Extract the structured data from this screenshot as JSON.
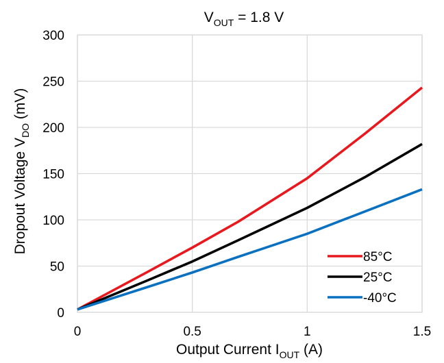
{
  "chart_data": {
    "type": "line",
    "title": {
      "main": "V",
      "sub": "OUT",
      "rest": " = 1.8 V"
    },
    "xlabel": {
      "main": "Output Current I",
      "sub": "OUT",
      "rest": " (A)"
    },
    "ylabel": {
      "main": "Dropout Voltage V",
      "sub": "DO",
      "rest": " (mV)"
    },
    "xlim": [
      0,
      1.5
    ],
    "ylim": [
      0,
      300
    ],
    "xticks": [
      0,
      0.5,
      1,
      1.5
    ],
    "xtick_labels": [
      "0",
      "0.5",
      "1",
      "1.5"
    ],
    "yticks": [
      0,
      50,
      100,
      150,
      200,
      250,
      300
    ],
    "ytick_labels": [
      "0",
      "50",
      "100",
      "150",
      "200",
      "250",
      "300"
    ],
    "grid": true,
    "legend_position": "bottom-right",
    "series": [
      {
        "name": "85°C",
        "color": "#e8191e",
        "x": [
          0,
          0.3,
          0.5,
          0.7,
          1.0,
          1.25,
          1.5
        ],
        "y": [
          3,
          43,
          70,
          98,
          145,
          193,
          243
        ]
      },
      {
        "name": "25°C",
        "color": "#000000",
        "x": [
          0,
          0.3,
          0.5,
          0.7,
          1.0,
          1.25,
          1.5
        ],
        "y": [
          3,
          34,
          55,
          78,
          113,
          146,
          182
        ]
      },
      {
        "name": "-40°C",
        "color": "#0a70c0",
        "x": [
          0,
          0.3,
          0.5,
          0.7,
          1.0,
          1.25,
          1.5
        ],
        "y": [
          3,
          27,
          43,
          60,
          85,
          109,
          133
        ]
      }
    ]
  }
}
